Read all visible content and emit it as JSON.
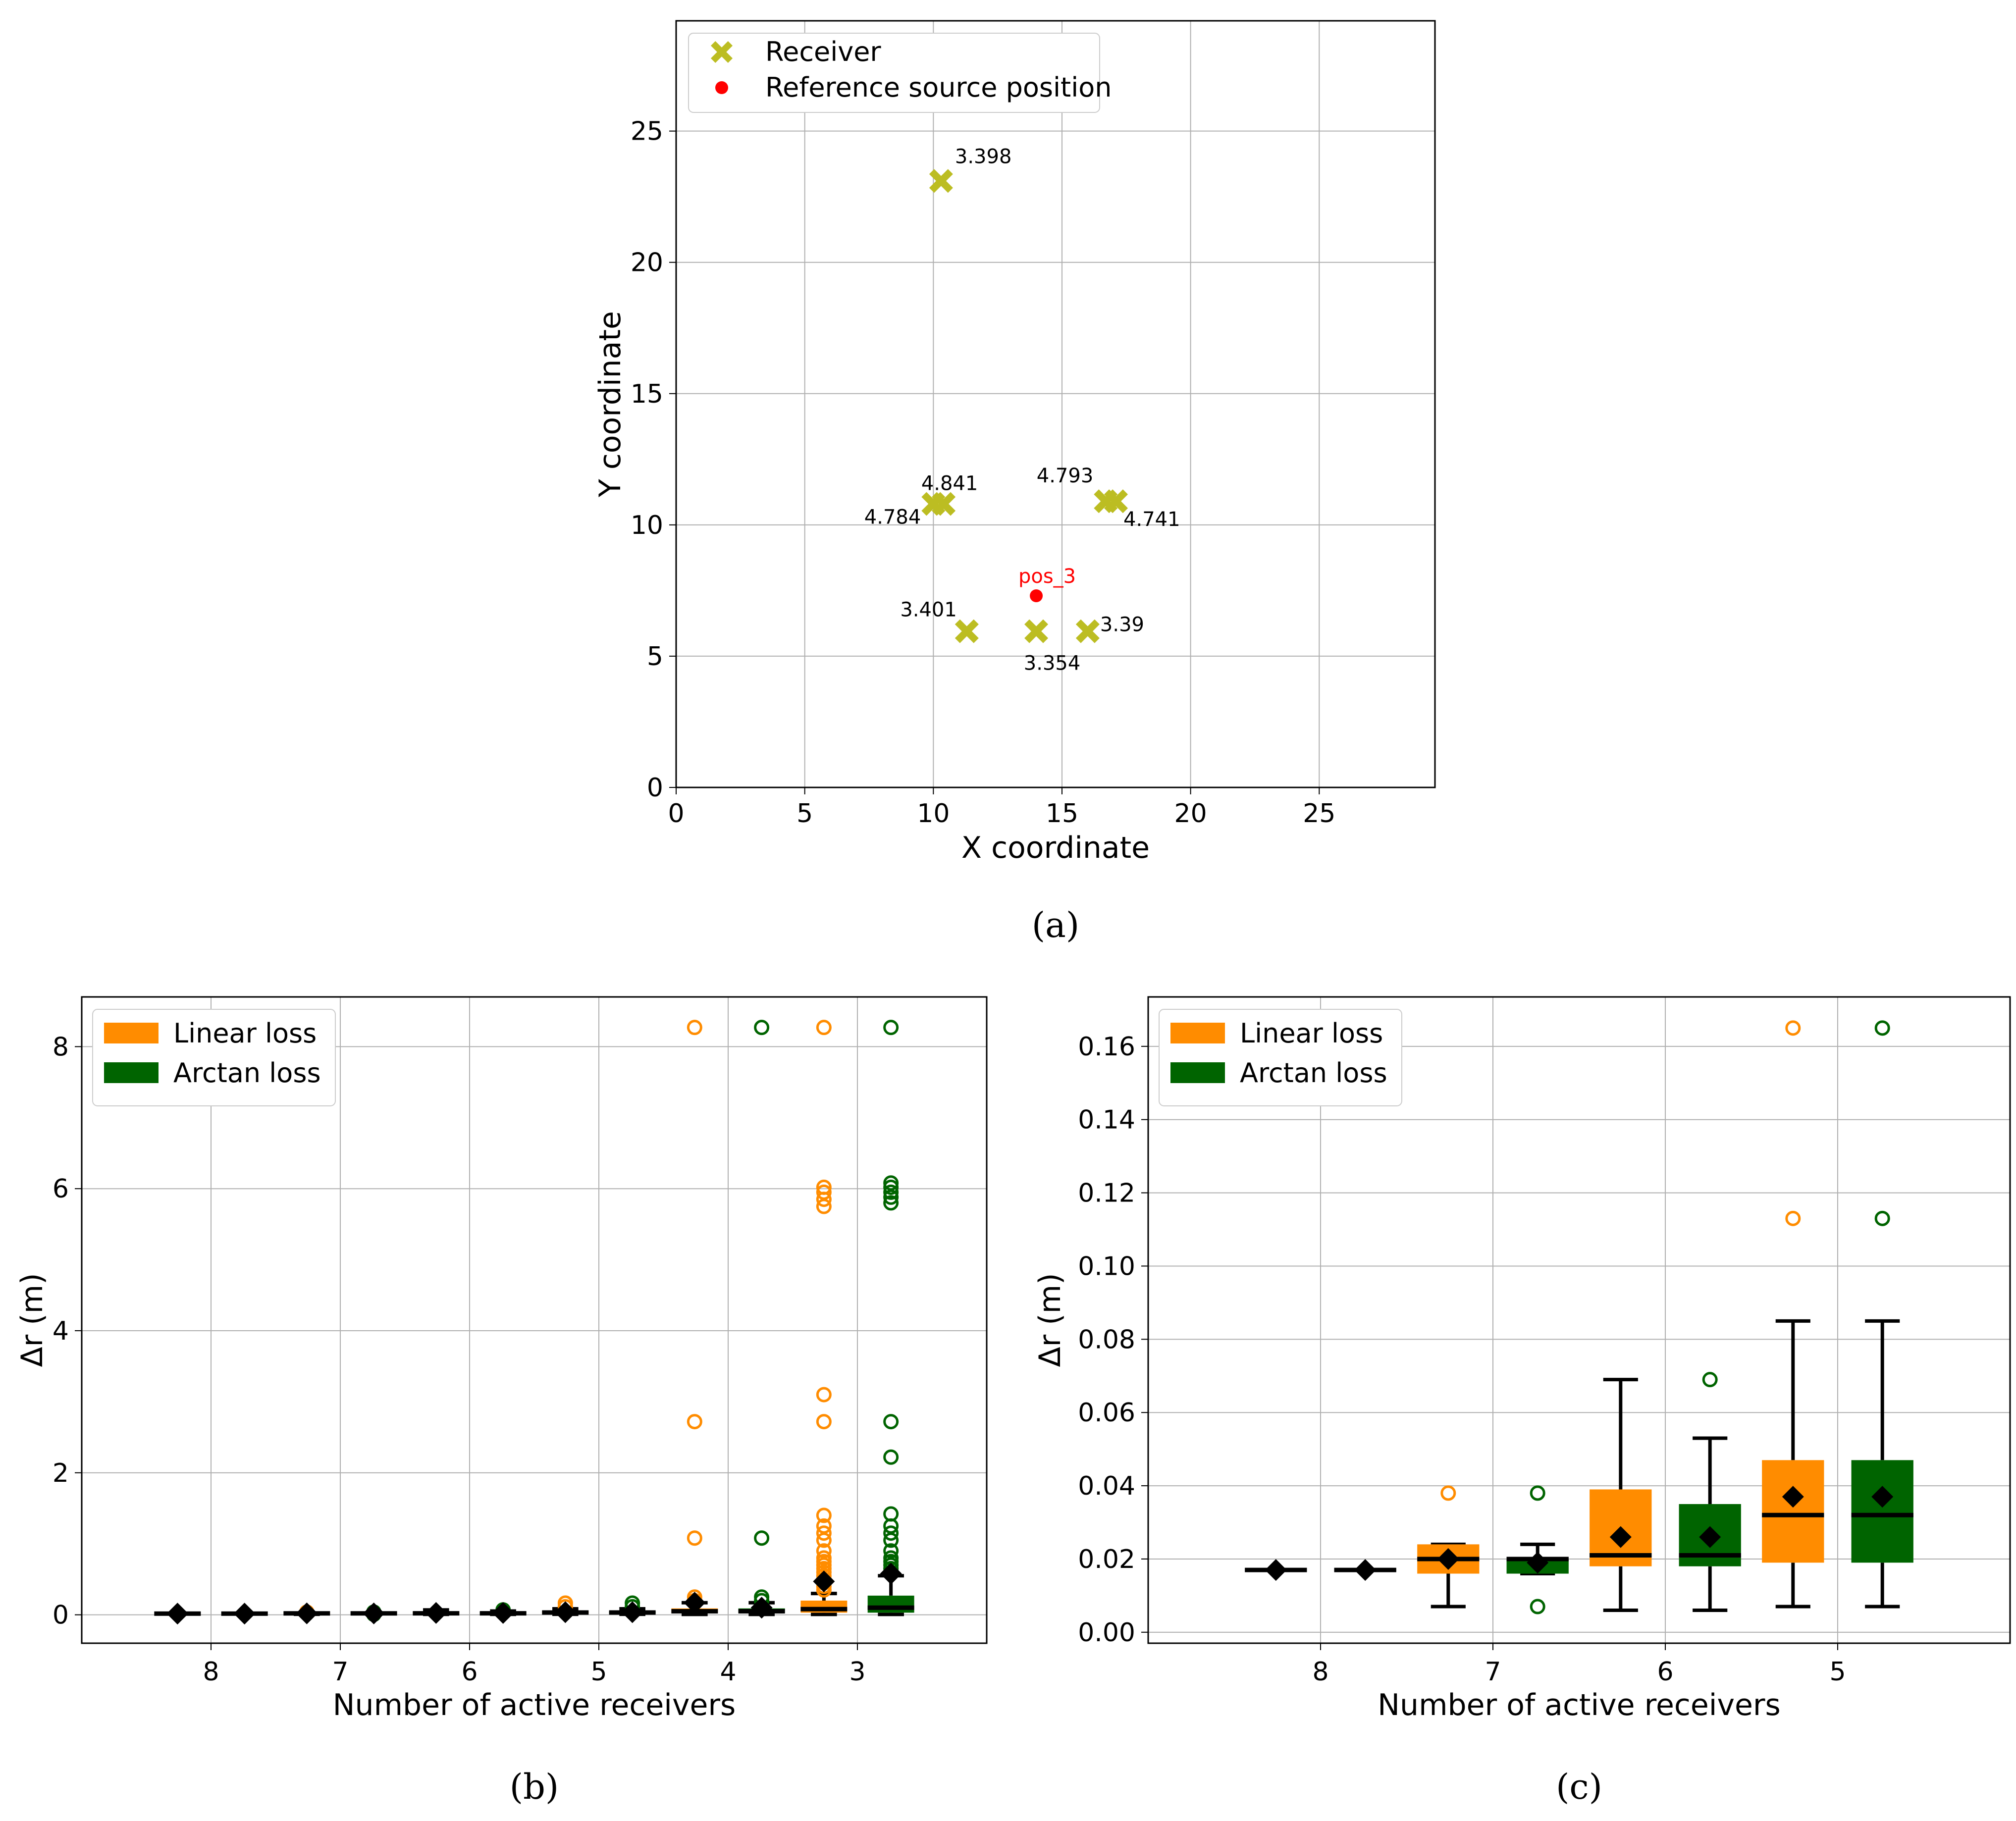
{
  "colors": {
    "receiver": "#bcbd22",
    "reference": "#ff0000",
    "linear": "#ff8c00",
    "arctan": "#006400",
    "grid": "#b0b0b0",
    "mean_marker": "#000000"
  },
  "chart_data": [
    {
      "id": "a",
      "type": "scatter",
      "caption": "(a)",
      "xlabel": "X coordinate",
      "ylabel": "Y coordinate",
      "xlim": [
        0,
        29.5
      ],
      "ylim": [
        0,
        29.2
      ],
      "xticks": [
        0,
        5,
        10,
        15,
        20,
        25
      ],
      "yticks": [
        0,
        5,
        10,
        15,
        20,
        25
      ],
      "grid": true,
      "legend_position": "top-left",
      "legend": [
        "Receiver",
        "Reference source position"
      ],
      "receivers": [
        {
          "x": 10.3,
          "y": 23.1,
          "label": "3.398"
        },
        {
          "x": 10.0,
          "y": 10.8,
          "label": "4.784"
        },
        {
          "x": 10.4,
          "y": 10.8,
          "label": "4.841"
        },
        {
          "x": 16.7,
          "y": 10.9,
          "label": "4.793"
        },
        {
          "x": 17.1,
          "y": 10.9,
          "label": "4.741"
        },
        {
          "x": 11.3,
          "y": 5.95,
          "label": "3.401"
        },
        {
          "x": 14.0,
          "y": 5.95,
          "label": "3.354"
        },
        {
          "x": 16.0,
          "y": 5.95,
          "label": "3.39"
        }
      ],
      "reference": {
        "x": 14.0,
        "y": 7.3,
        "label": "pos_3"
      }
    },
    {
      "id": "b",
      "type": "box",
      "caption": "(b)",
      "xlabel": "Number of active receivers",
      "ylabel": "Δr (m)",
      "categories": [
        "8",
        "7",
        "6",
        "5",
        "4",
        "3"
      ],
      "ylim": [
        -0.4,
        8.7
      ],
      "yticks": [
        0,
        2,
        4,
        6,
        8
      ],
      "grid": true,
      "legend_position": "top-left",
      "legend": [
        "Linear loss",
        "Arctan loss"
      ],
      "series": [
        {
          "name": "Linear loss",
          "boxes": [
            {
              "q1": 0.017,
              "median": 0.017,
              "q3": 0.017,
              "wlo": 0.017,
              "whi": 0.017,
              "mean": 0.017,
              "fliers": []
            },
            {
              "q1": 0.016,
              "median": 0.02,
              "q3": 0.024,
              "wlo": 0.007,
              "whi": 0.024,
              "mean": 0.02,
              "fliers": [
                0.038
              ]
            },
            {
              "q1": 0.018,
              "median": 0.021,
              "q3": 0.039,
              "wlo": 0.006,
              "whi": 0.069,
              "mean": 0.026,
              "fliers": []
            },
            {
              "q1": 0.019,
              "median": 0.032,
              "q3": 0.047,
              "wlo": 0.007,
              "whi": 0.085,
              "mean": 0.037,
              "fliers": [
                0.113,
                0.165
              ]
            },
            {
              "q1": 0.03,
              "median": 0.05,
              "q3": 0.09,
              "wlo": 0.005,
              "whi": 0.17,
              "mean": 0.17,
              "fliers": [
                0.2,
                0.25,
                1.08,
                2.72,
                8.27
              ]
            },
            {
              "q1": 0.03,
              "median": 0.08,
              "q3": 0.2,
              "wlo": 0.005,
              "whi": 0.3,
              "mean": 0.47,
              "fliers": [
                0.35,
                0.4,
                0.45,
                0.5,
                0.55,
                0.6,
                0.65,
                0.7,
                0.75,
                0.8,
                0.9,
                1.05,
                1.15,
                1.25,
                1.4,
                2.72,
                3.1,
                5.75,
                5.85,
                5.95,
                6.02,
                8.27
              ]
            }
          ]
        },
        {
          "name": "Arctan loss",
          "boxes": [
            {
              "q1": 0.017,
              "median": 0.017,
              "q3": 0.017,
              "wlo": 0.017,
              "whi": 0.017,
              "mean": 0.017,
              "fliers": []
            },
            {
              "q1": 0.016,
              "median": 0.02,
              "q3": 0.02,
              "wlo": 0.016,
              "whi": 0.024,
              "mean": 0.019,
              "fliers": [
                0.007,
                0.038
              ]
            },
            {
              "q1": 0.018,
              "median": 0.021,
              "q3": 0.035,
              "wlo": 0.006,
              "whi": 0.053,
              "mean": 0.026,
              "fliers": [
                0.069
              ]
            },
            {
              "q1": 0.019,
              "median": 0.032,
              "q3": 0.047,
              "wlo": 0.007,
              "whi": 0.085,
              "mean": 0.037,
              "fliers": [
                0.113,
                0.165
              ]
            },
            {
              "q1": 0.03,
              "median": 0.05,
              "q3": 0.09,
              "wlo": 0.005,
              "whi": 0.17,
              "mean": 0.1,
              "fliers": [
                0.2,
                0.25,
                1.08,
                8.27
              ]
            },
            {
              "q1": 0.03,
              "median": 0.1,
              "q3": 0.27,
              "wlo": 0.005,
              "whi": 0.55,
              "mean": 0.58,
              "fliers": [
                0.6,
                0.65,
                0.7,
                0.75,
                0.8,
                0.9,
                1.05,
                1.15,
                1.25,
                1.42,
                2.22,
                2.72,
                5.8,
                5.88,
                5.95,
                6.02,
                6.08,
                8.27
              ]
            }
          ]
        }
      ]
    },
    {
      "id": "c",
      "type": "box",
      "caption": "(c)",
      "xlabel": "Number of active receivers",
      "ylabel": "Δr (m)",
      "categories": [
        "8",
        "7",
        "6",
        "5"
      ],
      "ylim": [
        -0.003,
        0.1735
      ],
      "yticks": [
        0.0,
        0.02,
        0.04,
        0.06,
        0.08,
        0.1,
        0.12,
        0.14,
        0.16
      ],
      "ytick_labels": [
        "0.00",
        "0.02",
        "0.04",
        "0.06",
        "0.08",
        "0.10",
        "0.12",
        "0.14",
        "0.16"
      ],
      "grid": true,
      "legend_position": "top-left",
      "legend": [
        "Linear loss",
        "Arctan loss"
      ],
      "series": [
        {
          "name": "Linear loss",
          "boxes": [
            {
              "q1": 0.017,
              "median": 0.017,
              "q3": 0.017,
              "wlo": 0.017,
              "whi": 0.017,
              "mean": 0.017,
              "fliers": []
            },
            {
              "q1": 0.016,
              "median": 0.02,
              "q3": 0.024,
              "wlo": 0.007,
              "whi": 0.024,
              "mean": 0.02,
              "fliers": [
                0.038
              ]
            },
            {
              "q1": 0.018,
              "median": 0.021,
              "q3": 0.039,
              "wlo": 0.006,
              "whi": 0.069,
              "mean": 0.026,
              "fliers": []
            },
            {
              "q1": 0.019,
              "median": 0.032,
              "q3": 0.047,
              "wlo": 0.007,
              "whi": 0.085,
              "mean": 0.037,
              "fliers": [
                0.113,
                0.165
              ]
            }
          ]
        },
        {
          "name": "Arctan loss",
          "boxes": [
            {
              "q1": 0.017,
              "median": 0.017,
              "q3": 0.017,
              "wlo": 0.017,
              "whi": 0.017,
              "mean": 0.017,
              "fliers": []
            },
            {
              "q1": 0.016,
              "median": 0.02,
              "q3": 0.02,
              "wlo": 0.016,
              "whi": 0.024,
              "mean": 0.019,
              "fliers": [
                0.007,
                0.038
              ]
            },
            {
              "q1": 0.018,
              "median": 0.021,
              "q3": 0.035,
              "wlo": 0.006,
              "whi": 0.053,
              "mean": 0.026,
              "fliers": [
                0.069
              ]
            },
            {
              "q1": 0.019,
              "median": 0.032,
              "q3": 0.047,
              "wlo": 0.007,
              "whi": 0.085,
              "mean": 0.037,
              "fliers": [
                0.113,
                0.165
              ]
            }
          ]
        }
      ]
    }
  ]
}
